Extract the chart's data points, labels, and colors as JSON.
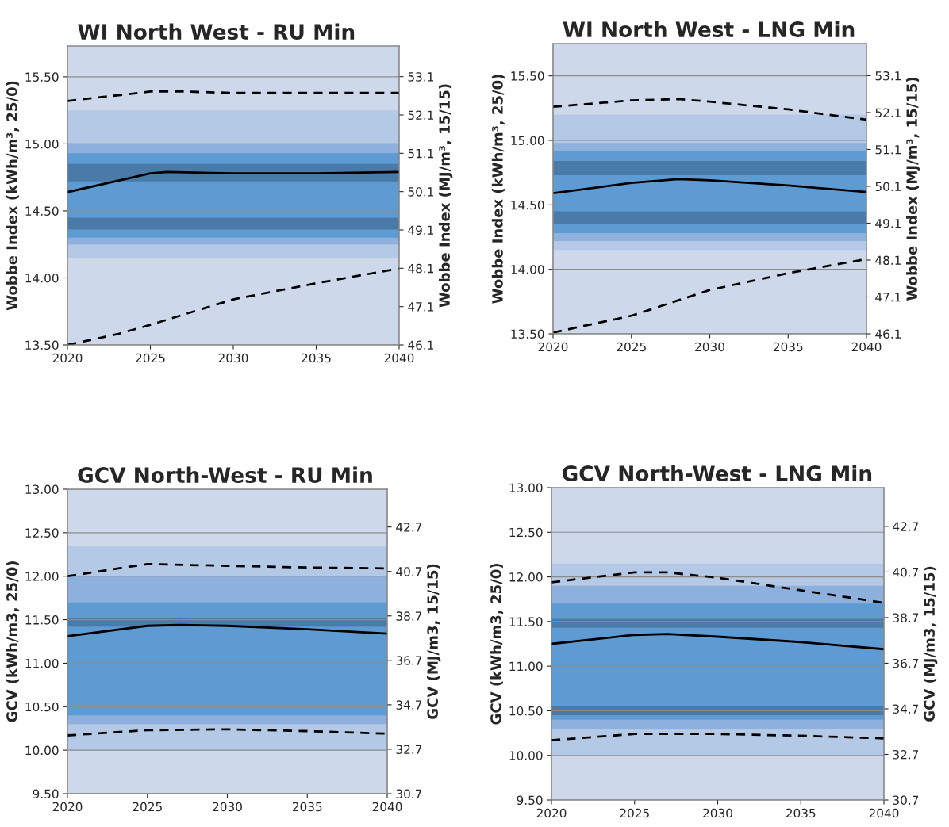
{
  "chart_data": [
    {
      "type": "line",
      "title": "WI North West - RU Min",
      "ylabel": "Wobbe Index (kWh/m³, 25/0)",
      "y2label": "Wobbe Index (MJ/m³, 15/15)",
      "xlim": [
        2020,
        2040
      ],
      "xticks": [
        2020,
        2025,
        2030,
        2035,
        2040
      ],
      "ylim": [
        13.5,
        15.73
      ],
      "yticks": [
        {
          "value": 13.5,
          "label": "13.50"
        },
        {
          "value": 14.0,
          "label": "14.00"
        },
        {
          "value": 14.5,
          "label": "14.50"
        },
        {
          "value": 15.0,
          "label": "15.00"
        },
        {
          "value": 15.5,
          "label": "15.50"
        }
      ],
      "y2lim": [
        46.1,
        53.9
      ],
      "y2ticks": [
        46.1,
        47.1,
        48.1,
        49.1,
        50.1,
        51.1,
        52.1,
        53.1
      ],
      "grid": "y",
      "bands": [
        {
          "axis": "y",
          "from": 13.5,
          "to": 15.73,
          "color": "#cdd9ea"
        },
        {
          "axis": "y",
          "from": 14.15,
          "to": 15.25,
          "color": "#b4c9e5"
        },
        {
          "axis": "y",
          "from": 14.25,
          "to": 15.0,
          "color": "#8db0dc"
        },
        {
          "axis": "y",
          "from": 14.3,
          "to": 14.93,
          "color": "#5f9bd3"
        },
        {
          "axis": "y",
          "from": 14.72,
          "to": 14.85,
          "color": "#4a7aa8"
        },
        {
          "axis": "y",
          "from": 14.36,
          "to": 14.45,
          "color": "#4a7aa8"
        }
      ],
      "series": [
        {
          "color": "#000000",
          "line_style": "solid",
          "x": [
            2020,
            2025,
            2026,
            2030,
            2035,
            2040
          ],
          "values": [
            14.64,
            14.78,
            14.79,
            14.78,
            14.78,
            14.79
          ]
        },
        {
          "color": "#000000",
          "line_style": "dashed",
          "x": [
            2020,
            2025,
            2027,
            2030,
            2035,
            2040
          ],
          "values": [
            15.32,
            15.39,
            15.39,
            15.38,
            15.38,
            15.38
          ]
        },
        {
          "color": "#000000",
          "line_style": "dashed",
          "x": [
            2020,
            2023,
            2025,
            2030,
            2035,
            2040
          ],
          "values": [
            13.5,
            13.58,
            13.65,
            13.84,
            13.96,
            14.07
          ]
        }
      ]
    },
    {
      "type": "line",
      "title": "WI North West - LNG Min",
      "ylabel": "Wobbe Index (kWh/m³, 25/0)",
      "y2label": "Wobbe Index (MJ/m³, 15/15)",
      "xlim": [
        2020,
        2040
      ],
      "xticks": [
        2020,
        2025,
        2030,
        2035,
        2040
      ],
      "ylim": [
        13.5,
        15.75
      ],
      "yticks": [
        {
          "value": 13.5,
          "label": "13.50"
        },
        {
          "value": 14.0,
          "label": "14.00"
        },
        {
          "value": 14.5,
          "label": "14.50"
        },
        {
          "value": 15.0,
          "label": "15.00"
        },
        {
          "value": 15.5,
          "label": "15.50"
        }
      ],
      "y2lim": [
        46.1,
        53.97
      ],
      "y2ticks": [
        46.1,
        47.1,
        48.1,
        49.1,
        50.1,
        51.1,
        52.1,
        53.1
      ],
      "grid": "y",
      "bands": [
        {
          "axis": "y",
          "from": 13.5,
          "to": 15.75,
          "color": "#cdd9ea"
        },
        {
          "axis": "y",
          "from": 14.15,
          "to": 15.2,
          "color": "#b4c9e5"
        },
        {
          "axis": "y",
          "from": 14.22,
          "to": 14.98,
          "color": "#8db0dc"
        },
        {
          "axis": "y",
          "from": 14.28,
          "to": 14.92,
          "color": "#5f9bd3"
        },
        {
          "axis": "y",
          "from": 14.73,
          "to": 14.84,
          "color": "#4a7aa8"
        },
        {
          "axis": "y",
          "from": 14.35,
          "to": 14.45,
          "color": "#4a7aa8"
        }
      ],
      "series": [
        {
          "color": "#000000",
          "line_style": "solid",
          "x": [
            2020,
            2025,
            2028,
            2030,
            2035,
            2040
          ],
          "values": [
            14.59,
            14.67,
            14.7,
            14.69,
            14.65,
            14.6
          ]
        },
        {
          "color": "#000000",
          "line_style": "dashed",
          "x": [
            2020,
            2025,
            2028,
            2030,
            2035,
            2040
          ],
          "values": [
            15.26,
            15.31,
            15.32,
            15.3,
            15.24,
            15.16
          ]
        },
        {
          "color": "#000000",
          "line_style": "dashed",
          "x": [
            2020,
            2025,
            2030,
            2035,
            2040
          ],
          "values": [
            13.51,
            13.64,
            13.84,
            13.97,
            14.08
          ]
        }
      ]
    },
    {
      "type": "line",
      "title": "GCV North-West - RU Min",
      "ylabel": "GCV (kWh/m3, 25/0)",
      "y2label": "GCV (MJ/m3, 15/15)",
      "xlim": [
        2020,
        2040
      ],
      "xticks": [
        2020,
        2025,
        2030,
        2035,
        2040
      ],
      "ylim": [
        9.5,
        13.0
      ],
      "yticks": [
        {
          "value": 9.5,
          "label": "9.50"
        },
        {
          "value": 10.0,
          "label": "10.00"
        },
        {
          "value": 10.5,
          "label": "10.50"
        },
        {
          "value": 11.0,
          "label": "11.00"
        },
        {
          "value": 11.5,
          "label": "11.50"
        },
        {
          "value": 12.0,
          "label": "12.00"
        },
        {
          "value": 12.5,
          "label": "12.50"
        },
        {
          "value": 13.0,
          "label": "13.00"
        }
      ],
      "y2lim": [
        30.7,
        44.4
      ],
      "y2ticks": [
        30.7,
        32.7,
        34.7,
        36.7,
        38.7,
        40.7,
        42.7
      ],
      "grid": "y",
      "bands": [
        {
          "axis": "y",
          "from": 9.5,
          "to": 13.0,
          "color": "#cdd9ea"
        },
        {
          "axis": "y",
          "from": 10.0,
          "to": 12.35,
          "color": "#b4c9e5"
        },
        {
          "axis": "y",
          "from": 10.3,
          "to": 12.0,
          "color": "#8db0dc"
        },
        {
          "axis": "y",
          "from": 10.4,
          "to": 11.7,
          "color": "#5f9bd3"
        },
        {
          "axis": "y",
          "from": 11.42,
          "to": 11.52,
          "color": "#4a7aa8"
        }
      ],
      "series": [
        {
          "color": "#000000",
          "line_style": "solid",
          "x": [
            2020,
            2025,
            2027,
            2030,
            2035,
            2040
          ],
          "values": [
            11.31,
            11.43,
            11.44,
            11.43,
            11.39,
            11.34
          ]
        },
        {
          "color": "#000000",
          "line_style": "dashed",
          "x": [
            2020,
            2025,
            2030,
            2035,
            2040
          ],
          "values": [
            12.0,
            12.14,
            12.12,
            12.1,
            12.09
          ]
        },
        {
          "color": "#000000",
          "line_style": "dashed",
          "x": [
            2020,
            2025,
            2030,
            2035,
            2040
          ],
          "values": [
            10.17,
            10.23,
            10.24,
            10.22,
            10.19
          ]
        }
      ]
    },
    {
      "type": "line",
      "title": "GCV North-West - LNG Min",
      "ylabel": "GCV (kWh/m3, 25/0)",
      "y2label": "GCV (MJ/m3, 15/15)",
      "xlim": [
        2020,
        2040
      ],
      "xticks": [
        2020,
        2025,
        2030,
        2035,
        2040
      ],
      "ylim": [
        9.5,
        13.0
      ],
      "yticks": [
        {
          "value": 9.5,
          "label": "9.50"
        },
        {
          "value": 10.0,
          "label": "10.00"
        },
        {
          "value": 10.5,
          "label": "10.50"
        },
        {
          "value": 11.0,
          "label": "11.00"
        },
        {
          "value": 11.5,
          "label": "11.50"
        },
        {
          "value": 12.0,
          "label": "12.00"
        },
        {
          "value": 12.5,
          "label": "12.50"
        },
        {
          "value": 13.0,
          "label": "13.00"
        }
      ],
      "y2lim": [
        30.7,
        44.4
      ],
      "y2ticks": [
        30.7,
        32.7,
        34.7,
        36.7,
        38.7,
        40.7,
        42.7
      ],
      "grid": "y",
      "bands": [
        {
          "axis": "y",
          "from": 9.5,
          "to": 13.0,
          "color": "#cdd9ea"
        },
        {
          "axis": "y",
          "from": 10.0,
          "to": 12.15,
          "color": "#b4c9e5"
        },
        {
          "axis": "y",
          "from": 10.3,
          "to": 11.9,
          "color": "#8db0dc"
        },
        {
          "axis": "y",
          "from": 10.4,
          "to": 11.7,
          "color": "#5f9bd3"
        },
        {
          "axis": "y",
          "from": 11.43,
          "to": 11.53,
          "color": "#4a7aa8"
        },
        {
          "axis": "y",
          "from": 10.45,
          "to": 10.55,
          "color": "#4a7aa8"
        }
      ],
      "series": [
        {
          "color": "#000000",
          "line_style": "solid",
          "x": [
            2020,
            2025,
            2027,
            2030,
            2035,
            2040
          ],
          "values": [
            11.25,
            11.35,
            11.36,
            11.33,
            11.27,
            11.19
          ]
        },
        {
          "color": "#000000",
          "line_style": "dashed",
          "x": [
            2020,
            2025,
            2027,
            2030,
            2035,
            2040
          ],
          "values": [
            11.94,
            12.05,
            12.05,
            11.99,
            11.85,
            11.71
          ]
        },
        {
          "color": "#000000",
          "line_style": "dashed",
          "x": [
            2020,
            2025,
            2030,
            2035,
            2040
          ],
          "values": [
            10.17,
            10.24,
            10.24,
            10.22,
            10.19
          ]
        }
      ]
    }
  ]
}
